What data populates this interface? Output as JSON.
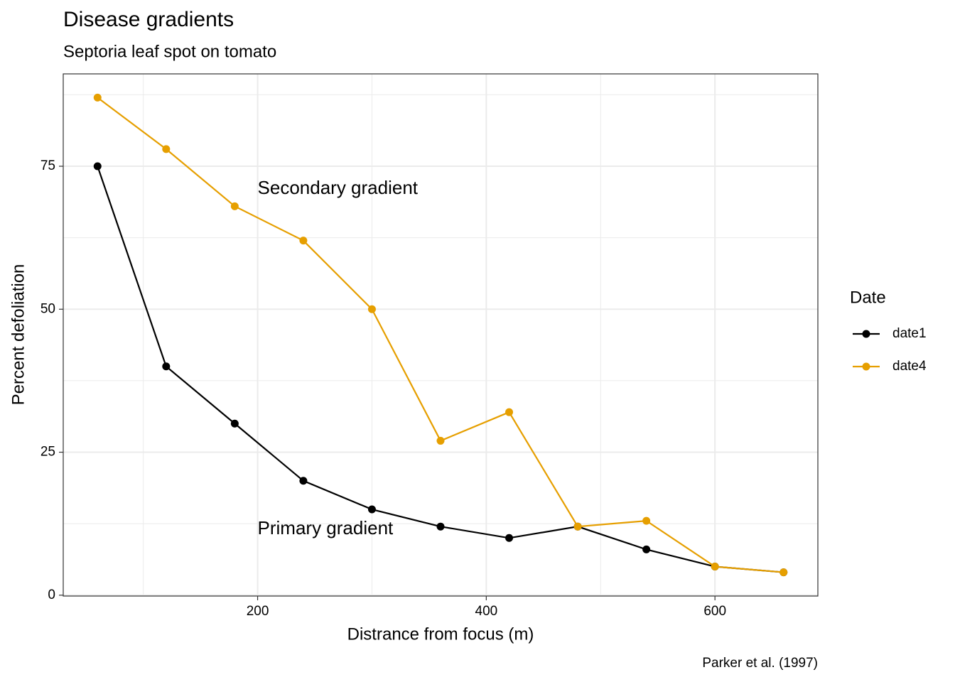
{
  "chart_data": {
    "type": "line",
    "title": "Disease gradients",
    "subtitle": "Septoria leaf spot on tomato",
    "x_label": "Distrance from focus (m)",
    "y_label": "Percent defoliation",
    "caption": "Parker et al. (1997)",
    "legend_title": "Date",
    "legend_position": "right",
    "x": [
      60,
      120,
      180,
      240,
      300,
      360,
      420,
      480,
      540,
      600,
      660
    ],
    "series": [
      {
        "name": "date1",
        "color": "#000000",
        "values": [
          75,
          40,
          30,
          20,
          15,
          12,
          10,
          12,
          8,
          5,
          4
        ]
      },
      {
        "name": "date4",
        "color": "#E69F00",
        "values": [
          87,
          78,
          68,
          62,
          50,
          27,
          32,
          12,
          13,
          5,
          4
        ]
      }
    ],
    "annotations": [
      {
        "text": "Secondary gradient",
        "x": 200,
        "y": 71
      },
      {
        "text": "Primary gradient",
        "x": 200,
        "y": 11.5
      }
    ],
    "xlim": [
      30,
      690
    ],
    "ylim": [
      -0.15,
      91.15
    ],
    "xticks": [
      200,
      400,
      600
    ],
    "yticks": [
      0,
      25,
      50,
      75
    ],
    "xminor": [
      100,
      300,
      500
    ],
    "yminor": [
      12.5,
      37.5,
      62.5,
      87.5
    ],
    "grid": true
  }
}
